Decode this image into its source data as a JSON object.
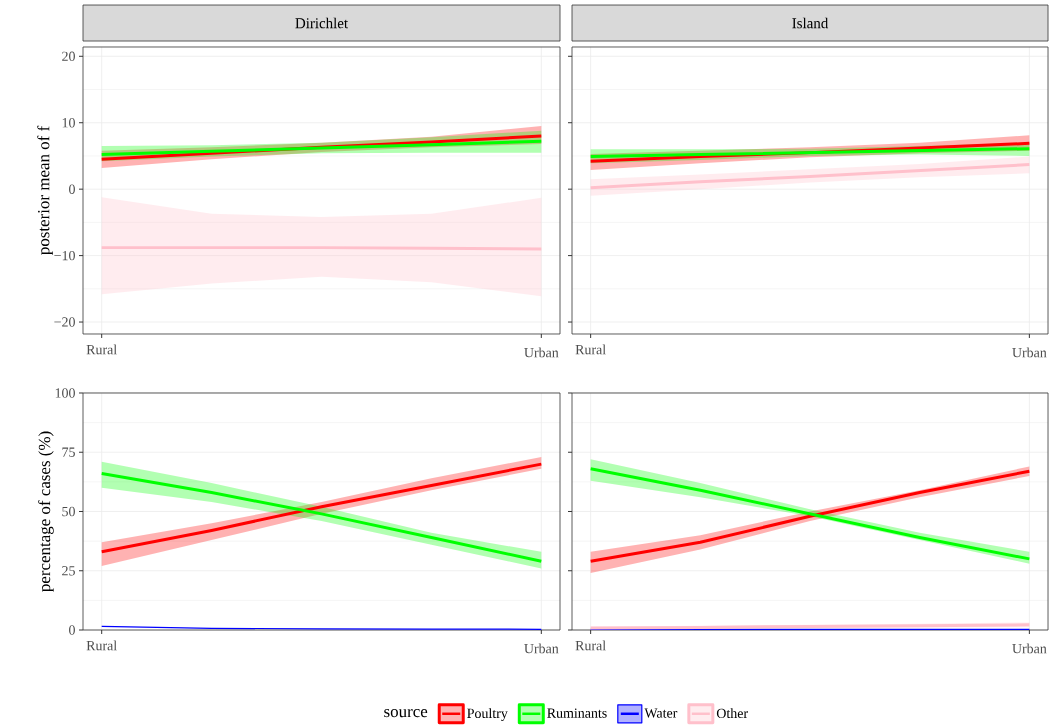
{
  "chart_data": [
    {
      "type": "line",
      "title": "Dirichlet",
      "ylabel": "posterior mean of f",
      "categories": [
        "Rural",
        null,
        null,
        null,
        "Urban"
      ],
      "ylim": [
        -21.8,
        21.4
      ],
      "yticks": [
        {
          "value": -20,
          "label": "−20"
        },
        {
          "value": -10,
          "label": "−10"
        },
        0,
        10,
        20
      ],
      "grid": true,
      "series": [
        {
          "color": "#ff0000",
          "values": [
            4.5,
            5.4,
            6.3,
            7.1,
            8.0
          ],
          "lower": [
            3.2,
            4.5,
            5.6,
            6.3,
            6.8
          ],
          "upper": [
            5.8,
            6.3,
            7.0,
            7.9,
            9.5
          ]
        },
        {
          "color": "#00ff00",
          "values": [
            5.2,
            5.7,
            6.2,
            6.7,
            7.2
          ],
          "lower": [
            4.2,
            4.9,
            5.4,
            5.5,
            5.5
          ],
          "upper": [
            6.5,
            6.6,
            7.0,
            7.8,
            8.8
          ]
        },
        {
          "color": "#ffc0cb",
          "values": [
            -8.8,
            -8.8,
            -8.8,
            -8.9,
            -9.0
          ],
          "lower": [
            -15.8,
            -14.2,
            -13.2,
            -14.0,
            -16.1
          ],
          "upper": [
            -1.2,
            -3.7,
            -4.2,
            -3.7,
            -1.3
          ]
        }
      ]
    },
    {
      "type": "line",
      "title": "Island",
      "categories": [
        "Rural",
        null,
        null,
        null,
        "Urban"
      ],
      "ylim": [
        -21.8,
        21.4
      ],
      "yticks": [
        -20,
        -10,
        0,
        10,
        20
      ],
      "grid": true,
      "tick_labels": "x",
      "series": [
        {
          "color": "#ff0000",
          "values": [
            4.2,
            4.9,
            5.5,
            6.2,
            6.9
          ],
          "lower": [
            2.9,
            3.9,
            4.8,
            5.4,
            5.8
          ],
          "upper": [
            5.3,
            5.8,
            6.3,
            7.0,
            8.1
          ]
        },
        {
          "color": "#00ff00",
          "values": [
            4.9,
            5.2,
            5.5,
            5.8,
            6.1
          ],
          "lower": [
            3.9,
            4.4,
            5.0,
            5.2,
            5.0
          ],
          "upper": [
            6.0,
            6.0,
            6.1,
            6.5,
            7.0
          ]
        },
        {
          "color": "#ffc0cb",
          "values": [
            0.2,
            1.1,
            1.9,
            2.8,
            3.7
          ],
          "lower": [
            -1.0,
            0.0,
            1.0,
            1.8,
            2.4
          ],
          "upper": [
            1.5,
            2.2,
            3.0,
            3.8,
            4.9
          ]
        }
      ]
    },
    {
      "type": "line",
      "ylabel": "percentage of cases (%)",
      "categories": [
        "Rural",
        null,
        null,
        null,
        "Urban"
      ],
      "ylim": [
        0,
        100
      ],
      "yticks": [
        0,
        25,
        50,
        75,
        100
      ],
      "grid": true,
      "series": [
        {
          "color": "#ff0000",
          "values": [
            33,
            42,
            52,
            61,
            70
          ],
          "lower": [
            27,
            38,
            49,
            59,
            68
          ],
          "upper": [
            37,
            45,
            54,
            64,
            73
          ]
        },
        {
          "color": "#00ff00",
          "values": [
            66,
            58,
            49,
            39,
            29
          ],
          "lower": [
            60,
            54,
            46,
            36,
            26
          ],
          "upper": [
            71,
            62,
            52,
            41,
            33
          ]
        },
        {
          "color": "#0000ff",
          "values": [
            1.5,
            0.7,
            0.5,
            0.4,
            0.3
          ]
        }
      ]
    },
    {
      "type": "line",
      "categories": [
        "Rural",
        null,
        null,
        null,
        "Urban"
      ],
      "ylim": [
        0,
        100
      ],
      "yticks": [
        0,
        25,
        50,
        75,
        100
      ],
      "grid": true,
      "tick_labels": "x",
      "legend": "bottom",
      "legend_title": "source",
      "series": [
        {
          "name": "Poultry",
          "color": "#ff0000",
          "values": [
            29,
            37,
            48,
            58,
            67
          ],
          "lower": [
            24,
            34,
            46,
            56,
            65
          ],
          "upper": [
            33,
            40,
            50,
            59,
            69
          ]
        },
        {
          "name": "Ruminants",
          "color": "#00ff00",
          "values": [
            68,
            59,
            49,
            39,
            30
          ],
          "lower": [
            63,
            56,
            48,
            38,
            28
          ],
          "upper": [
            72,
            62,
            51,
            41,
            33
          ]
        },
        {
          "name": "Water",
          "color": "#0000ff",
          "values": [
            0.3,
            0.3,
            0.3,
            0.3,
            0.3
          ]
        },
        {
          "name": "Other",
          "color": "#ffc0cb",
          "values": [
            0.8,
            1.1,
            1.5,
            1.8,
            2.2
          ],
          "lower": [
            0.3,
            0.5,
            0.8,
            1.0,
            1.2
          ],
          "upper": [
            1.4,
            1.8,
            2.2,
            2.6,
            3.2
          ]
        }
      ]
    }
  ]
}
